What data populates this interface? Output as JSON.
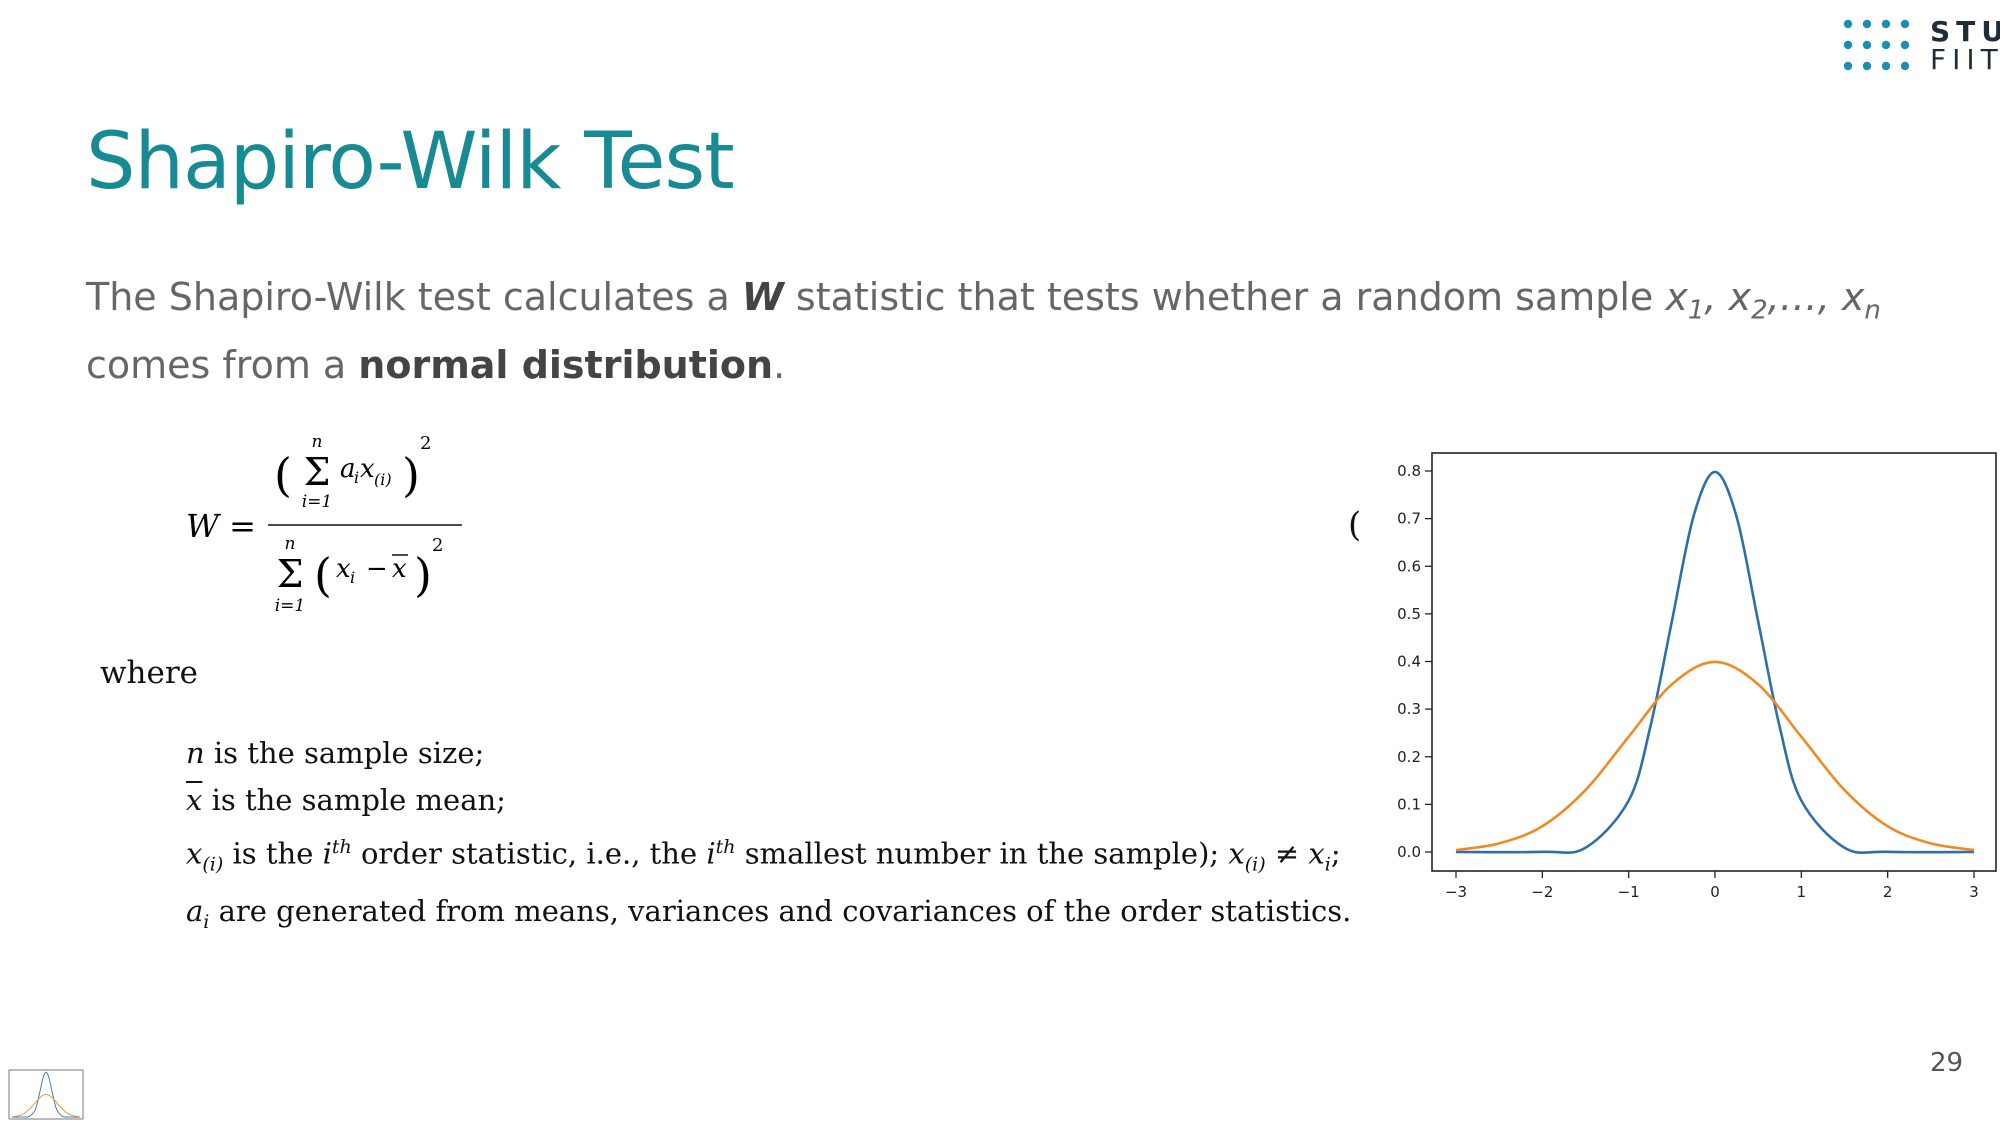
{
  "logo": {
    "line1": "STU",
    "line2": "FIIT",
    "dot_color": "#1a8fb0"
  },
  "title": "Shapiro-Wilk Test",
  "intro": {
    "part1": "The Shapiro-Wilk test calculates a ",
    "w": "W",
    "part2": " statistic that tests whether a random sample ",
    "x1": "x",
    "x1_sub": "1",
    "sep1": ", ",
    "x2": "x",
    "x2_sub": "2",
    "sep2": ",…, ",
    "xn": "x",
    "xn_sub": "n",
    "part3": " comes from a ",
    "normal_distribution": "normal distribution",
    "part4": "."
  },
  "formula": {
    "lhs": "W =",
    "num_sigma_top": "n",
    "num_sigma_bottom": "i=1",
    "num_term": "a",
    "num_term_sub": "i",
    "num_term2": "x",
    "num_term2_sub": "(i)",
    "num_exp": "2",
    "den_sigma_top": "n",
    "den_sigma_bottom": "i=1",
    "den_term": "x",
    "den_term_sub": "i",
    "den_minus": "−",
    "den_mean": "x",
    "den_exp": "2"
  },
  "where": "where",
  "definitions": {
    "d1_var": "n",
    "d1_text": " is the sample size;",
    "d2_var": "x",
    "d2_text": " is the sample mean;",
    "d3_var": "x",
    "d3_var_sub": "(i)",
    "d3_text1": " is the ",
    "d3_i1": "i",
    "d3_th1": "th",
    "d3_text2": " order statistic, i.e., the ",
    "d3_i2": "i",
    "d3_th2": "th",
    "d3_text3": " smallest number in the sample); ",
    "d3_var2": "x",
    "d3_var2_sub": "(i)",
    "d3_neq": " ≠ ",
    "d3_var3": "x",
    "d3_var3_sub": "i",
    "d3_end": ";",
    "d4_var": "a",
    "d4_var_sub": "i",
    "d4_text": " are generated from means, variances and covariances of the order statistics."
  },
  "paren_fragment": "(",
  "chart_data": {
    "type": "line",
    "title": "",
    "xlabel": "",
    "ylabel": "",
    "xlim": [
      -3,
      3
    ],
    "ylim": [
      0,
      0.8
    ],
    "x_ticks": [
      "−3",
      "−2",
      "−1",
      "0",
      "1",
      "2",
      "3"
    ],
    "y_ticks": [
      "0.0",
      "0.1",
      "0.2",
      "0.3",
      "0.4",
      "0.5",
      "0.6",
      "0.7",
      "0.8"
    ],
    "grid": false,
    "series": [
      {
        "color": "#2f6fa8",
        "x": [
          -3,
          -2,
          -1.5,
          -1,
          -0.75,
          -0.5,
          -0.25,
          0,
          0.25,
          0.5,
          0.75,
          1,
          1.5,
          2,
          3
        ],
        "y": [
          0.0,
          0.0003,
          0.009,
          0.108,
          0.262,
          0.484,
          0.704,
          0.798,
          0.704,
          0.484,
          0.262,
          0.108,
          0.009,
          0.0003,
          0.0
        ]
      },
      {
        "color": "#f08a24",
        "x": [
          -3,
          -2.5,
          -2,
          -1.5,
          -1,
          -0.5,
          0,
          0.5,
          1,
          1.5,
          2,
          2.5,
          3
        ],
        "y": [
          0.004,
          0.018,
          0.054,
          0.13,
          0.242,
          0.352,
          0.399,
          0.352,
          0.242,
          0.13,
          0.054,
          0.018,
          0.004
        ]
      }
    ]
  },
  "page_number": "29"
}
